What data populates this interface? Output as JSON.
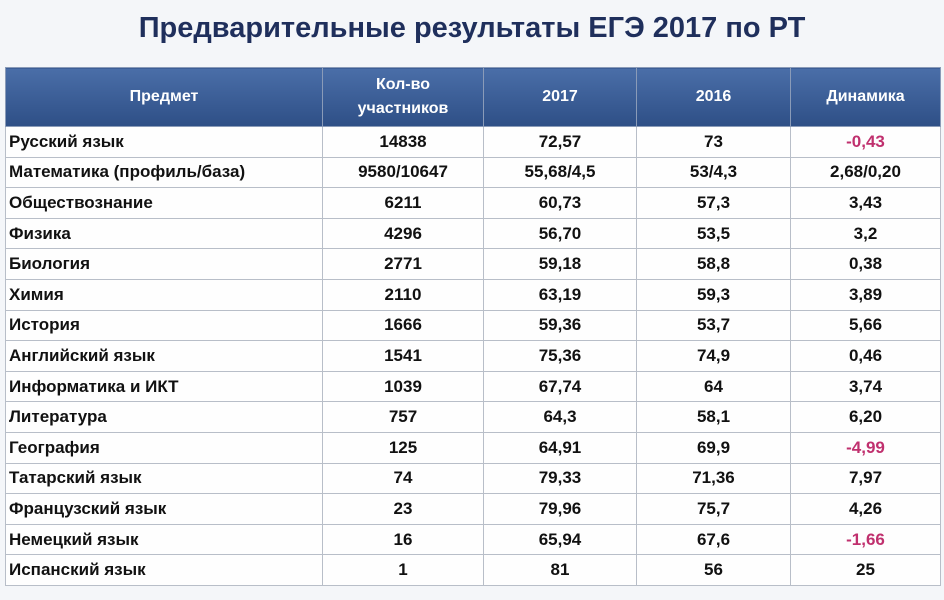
{
  "title": "Предварительные результаты ЕГЭ 2017 по РТ",
  "table": {
    "header": [
      "Предмет",
      "Кол-во участников",
      "2017",
      "2016",
      "Динамика"
    ],
    "rows": [
      [
        "Русский язык",
        "14838",
        "72,57",
        "73",
        "-0,43"
      ],
      [
        "Математика  (профиль/база)",
        "9580/10647",
        "55,68/4,5",
        "53/4,3",
        "2,68/0,20"
      ],
      [
        "Обществознание",
        "6211",
        "60,73",
        "57,3",
        "3,43"
      ],
      [
        "Физика",
        "4296",
        "56,70",
        "53,5",
        "3,2"
      ],
      [
        "Биология",
        "2771",
        "59,18",
        "58,8",
        "0,38"
      ],
      [
        "Химия",
        "2110",
        "63,19",
        "59,3",
        "3,89"
      ],
      [
        "История",
        "1666",
        "59,36",
        "53,7",
        "5,66"
      ],
      [
        "Английский язык",
        "1541",
        "75,36",
        "74,9",
        "0,46"
      ],
      [
        "Информатика и ИКТ",
        "1039",
        "67,74",
        "64",
        "3,74"
      ],
      [
        "Литература",
        "757",
        "64,3",
        "58,1",
        "6,20"
      ],
      [
        "География",
        "125",
        "64,91",
        "69,9",
        "-4,99"
      ],
      [
        "Татарский язык",
        "74",
        "79,33",
        "71,36",
        "7,97"
      ],
      [
        "Французский язык",
        "23",
        "79,96",
        "75,7",
        "4,26"
      ],
      [
        "Немецкий язык",
        "16",
        "65,94",
        "67,6",
        "-1,66"
      ],
      [
        "Испанский язык",
        "1",
        "81",
        "56",
        "25"
      ]
    ]
  }
}
